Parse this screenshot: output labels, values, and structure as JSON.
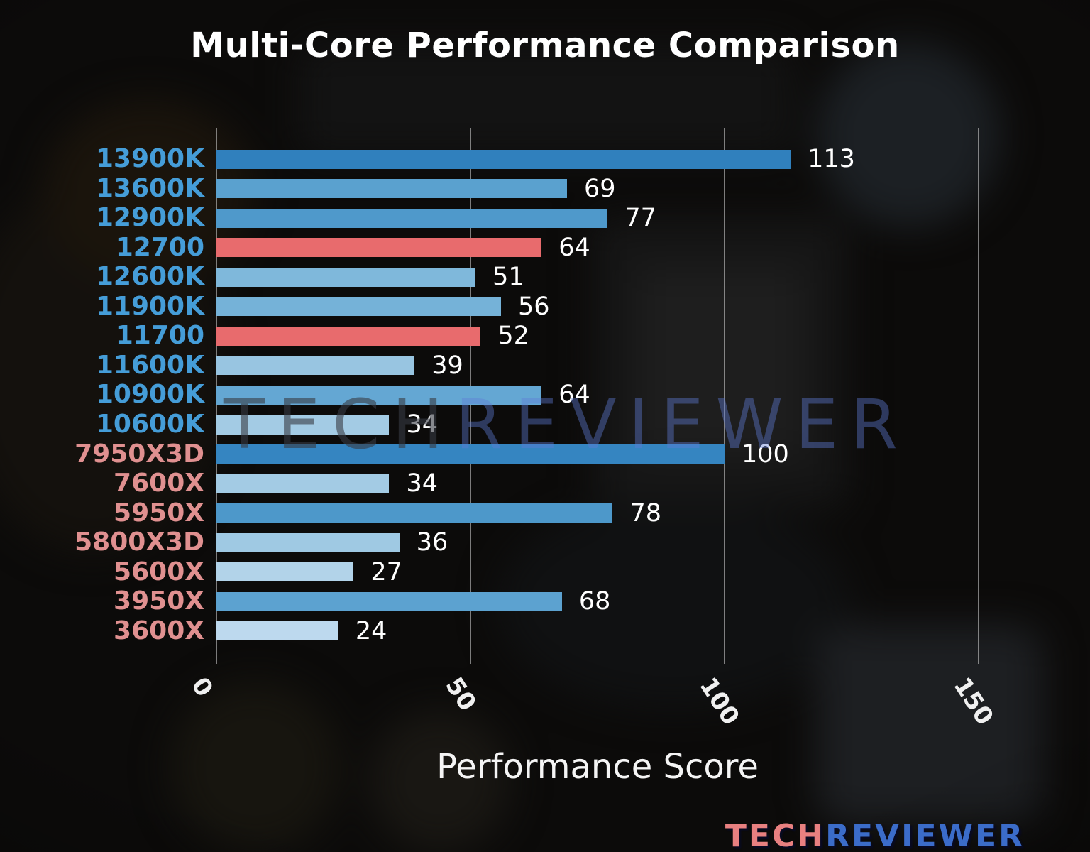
{
  "chart_data": {
    "type": "bar",
    "orientation": "horizontal",
    "title": "Multi-Core Performance Comparison",
    "xlabel": "Performance Score",
    "xlim": [
      0,
      150
    ],
    "xticks": [
      0,
      50,
      100,
      150
    ],
    "grid": true,
    "legend": null,
    "bars": [
      {
        "label": "13900K",
        "value": 113,
        "brand": "intel",
        "color": "#3080bd",
        "highlighted": false
      },
      {
        "label": "13600K",
        "value": 69,
        "brand": "intel",
        "color": "#5aa1cf",
        "highlighted": false
      },
      {
        "label": "12900K",
        "value": 77,
        "brand": "intel",
        "color": "#4f99cb",
        "highlighted": false
      },
      {
        "label": "12700",
        "value": 64,
        "brand": "intel",
        "color": "#e86b6d",
        "highlighted": true
      },
      {
        "label": "12600K",
        "value": 51,
        "brand": "intel",
        "color": "#7fb8db",
        "highlighted": false
      },
      {
        "label": "11900K",
        "value": 56,
        "brand": "intel",
        "color": "#75b2d8",
        "highlighted": false
      },
      {
        "label": "11700",
        "value": 52,
        "brand": "intel",
        "color": "#e86b6d",
        "highlighted": true
      },
      {
        "label": "11600K",
        "value": 39,
        "brand": "intel",
        "color": "#98c5e1",
        "highlighted": false
      },
      {
        "label": "10900K",
        "value": 64,
        "brand": "intel",
        "color": "#64a7d3",
        "highlighted": false
      },
      {
        "label": "10600K",
        "value": 34,
        "brand": "intel",
        "color": "#a3cbe4",
        "highlighted": false
      },
      {
        "label": "7950X3D",
        "value": 100,
        "brand": "amd",
        "color": "#3585c1",
        "highlighted": false
      },
      {
        "label": "7600X",
        "value": 34,
        "brand": "amd",
        "color": "#a3cbe4",
        "highlighted": false
      },
      {
        "label": "5950X",
        "value": 78,
        "brand": "amd",
        "color": "#4d98ca",
        "highlighted": false
      },
      {
        "label": "5800X3D",
        "value": 36,
        "brand": "amd",
        "color": "#9fc9e3",
        "highlighted": false
      },
      {
        "label": "5600X",
        "value": 27,
        "brand": "amd",
        "color": "#b2d3e9",
        "highlighted": false
      },
      {
        "label": "3950X",
        "value": 68,
        "brand": "amd",
        "color": "#5ca2d0",
        "highlighted": false
      },
      {
        "label": "3600X",
        "value": 24,
        "brand": "amd",
        "color": "#bdd9ee",
        "highlighted": false
      }
    ]
  },
  "colors": {
    "intel_label": "#459dd8",
    "amd_label": "#e09090",
    "highlight_bar": "#e86b6d",
    "value_label": "#ffffff",
    "gridline": "rgba(218,218,218,0.55)"
  },
  "watermark": {
    "tech": "TECH",
    "reviewer": "REVIEWER"
  },
  "logo": {
    "tech": "TECH",
    "reviewer": "REVIEWER"
  }
}
